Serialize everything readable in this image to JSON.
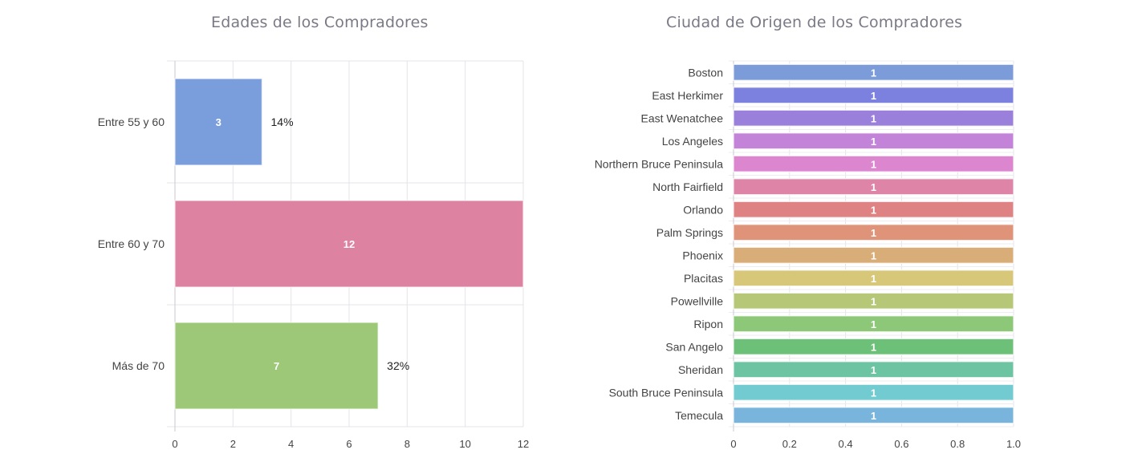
{
  "chart_data": [
    {
      "type": "bar",
      "orientation": "horizontal",
      "title": "Edades de los Compradores",
      "categories": [
        "Entre 55 y 60",
        "Entre 60 y 70",
        "Más de 70"
      ],
      "values": [
        3,
        12,
        7
      ],
      "percent_labels": [
        "14%",
        "",
        "32%"
      ],
      "colors": [
        "#7a9ddc",
        "#dd82a0",
        "#9cc878"
      ],
      "xlim": [
        0,
        12
      ],
      "xticks": [
        "0",
        "2",
        "4",
        "6",
        "8",
        "10",
        "12"
      ],
      "grid": true
    },
    {
      "type": "bar",
      "orientation": "horizontal",
      "title": "Ciudad de Origen de los Compradores",
      "categories": [
        "Boston",
        "East Herkimer",
        "East Wenatchee",
        "Los Angeles",
        "Northern Bruce Peninsula",
        "North Fairfield",
        "Orlando",
        "Palm Springs",
        "Phoenix",
        "Placitas",
        "Powellville",
        "Ripon",
        "San Angelo",
        "Sheridan",
        "South Bruce Peninsula",
        "Temecula"
      ],
      "values": [
        1,
        1,
        1,
        1,
        1,
        1,
        1,
        1,
        1,
        1,
        1,
        1,
        1,
        1,
        1,
        1
      ],
      "colors": [
        "#7b9cd8",
        "#7c80de",
        "#9b80db",
        "#c383d8",
        "#dc86cf",
        "#de84a6",
        "#de8284",
        "#df9479",
        "#d9ad78",
        "#d6c878",
        "#b6c878",
        "#8dc878",
        "#6cc078",
        "#6cc4a2",
        "#72cbd0",
        "#78b4dc"
      ],
      "xlim": [
        0,
        1.0
      ],
      "xticks": [
        "0",
        "0.2",
        "0.4",
        "0.6",
        "0.8",
        "1.0"
      ],
      "grid": true
    }
  ]
}
